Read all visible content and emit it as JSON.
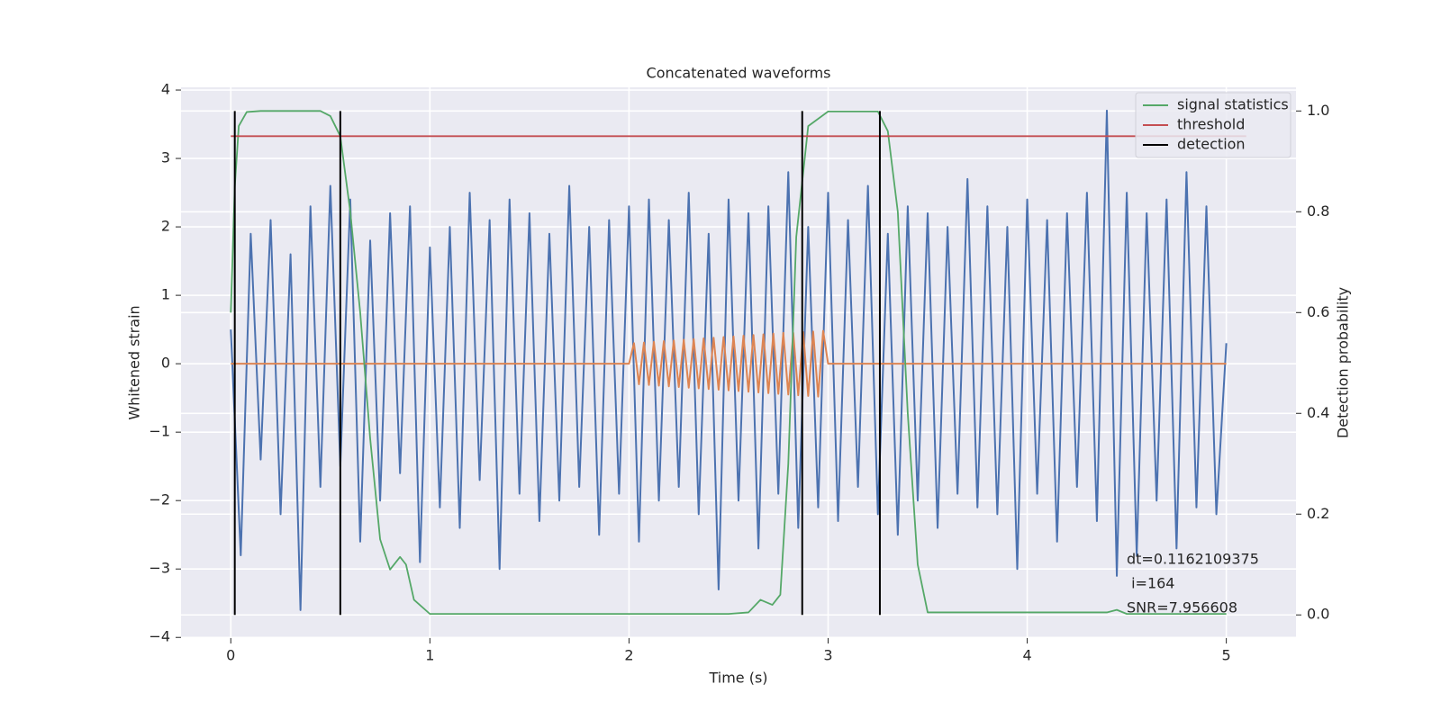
{
  "chart_data": {
    "type": "line",
    "title": "Concatenated waveforms",
    "xlabel": "Time (s)",
    "ylabel": "Whitened strain",
    "y2label": "Detection probability",
    "xlim": [
      -0.25,
      5.35
    ],
    "xticks": [
      0,
      1,
      2,
      3,
      4,
      5
    ],
    "ylim": [
      -4.01,
      4.04
    ],
    "yticks": [
      {
        "value": -4,
        "label": "−4"
      },
      {
        "value": -3,
        "label": "−3"
      },
      {
        "value": -2,
        "label": "−2"
      },
      {
        "value": -1,
        "label": "−1"
      },
      0,
      1,
      2,
      3,
      4
    ],
    "y2lim": [
      -0.046,
      1.047
    ],
    "y2ticks": [
      {
        "value": 0,
        "label": "0.0"
      },
      0.2,
      0.4,
      0.6,
      0.8,
      {
        "value": 1,
        "label": "1.0"
      }
    ],
    "grid": true,
    "legend": "upper right",
    "annotation": [
      "dt=0.1162109375",
      " i=164",
      "SNR=7.956608"
    ],
    "series": [
      {
        "color": "#4c72b0",
        "x": [
          0,
          0.05,
          0.1,
          0.15,
          0.2,
          0.25,
          0.3,
          0.35,
          0.4,
          0.45,
          0.5,
          0.55,
          0.6,
          0.65,
          0.7,
          0.75,
          0.8,
          0.85,
          0.9,
          0.95,
          1,
          1.05,
          1.1,
          1.15,
          1.2,
          1.25,
          1.3,
          1.35,
          1.4,
          1.45,
          1.5,
          1.55,
          1.6,
          1.65,
          1.7,
          1.75,
          1.8,
          1.85,
          1.9,
          1.95,
          2,
          2.05,
          2.1,
          2.15,
          2.2,
          2.25,
          2.3,
          2.35,
          2.4,
          2.45,
          2.5,
          2.55,
          2.6,
          2.65,
          2.7,
          2.75,
          2.8,
          2.85,
          2.9,
          2.95,
          3,
          3.05,
          3.1,
          3.15,
          3.2,
          3.25,
          3.3,
          3.35,
          3.4,
          3.45,
          3.5,
          3.55,
          3.6,
          3.65,
          3.7,
          3.75,
          3.8,
          3.85,
          3.9,
          3.95,
          4,
          4.05,
          4.1,
          4.15,
          4.2,
          4.25,
          4.3,
          4.35,
          4.4,
          4.45,
          4.5,
          4.55,
          4.6,
          4.65,
          4.7,
          4.75,
          4.8,
          4.85,
          4.9,
          4.95,
          5
        ],
        "values": [
          0.5,
          -2.8,
          1.9,
          -1.4,
          2.1,
          -2.2,
          1.6,
          -3.6,
          2.3,
          -1.8,
          2.6,
          -1.5,
          2.4,
          -2.6,
          1.8,
          -2.0,
          2.2,
          -1.6,
          2.3,
          -2.9,
          1.7,
          -2.1,
          2.0,
          -2.4,
          2.5,
          -1.7,
          2.1,
          -3.0,
          2.4,
          -1.9,
          2.2,
          -2.3,
          1.9,
          -2.0,
          2.6,
          -1.8,
          2.0,
          -2.5,
          2.1,
          -1.9,
          2.3,
          -2.6,
          2.4,
          -2.0,
          2.1,
          -1.8,
          2.5,
          -2.2,
          1.9,
          -3.3,
          2.4,
          -2.0,
          2.2,
          -2.7,
          2.3,
          -1.9,
          2.8,
          -2.4,
          2.0,
          -2.1,
          2.5,
          -2.3,
          2.1,
          -1.8,
          2.6,
          -2.2,
          1.9,
          -2.5,
          2.3,
          -2.0,
          2.2,
          -2.4,
          2.0,
          -1.9,
          2.7,
          -2.1,
          2.3,
          -2.2,
          2.0,
          -3.0,
          2.4,
          -1.9,
          2.1,
          -2.6,
          2.2,
          -1.8,
          2.5,
          -2.3,
          3.7,
          -3.1,
          2.5,
          -2.8,
          2.2,
          -2.0,
          2.4,
          -2.7,
          2.8,
          -2.1,
          2.3,
          -2.2,
          0.3
        ]
      },
      {
        "color": "#dd8452",
        "x": [
          0,
          2,
          2.025,
          2.05,
          2.075,
          2.1,
          2.125,
          2.15,
          2.175,
          2.2,
          2.225,
          2.25,
          2.275,
          2.3,
          2.325,
          2.35,
          2.375,
          2.4,
          2.425,
          2.45,
          2.475,
          2.5,
          2.525,
          2.55,
          2.575,
          2.6,
          2.625,
          2.65,
          2.675,
          2.7,
          2.725,
          2.75,
          2.775,
          2.8,
          2.825,
          2.85,
          2.875,
          2.9,
          2.925,
          2.95,
          2.975,
          3,
          5
        ],
        "values": [
          0,
          0,
          0.3,
          -0.3,
          0.31,
          -0.31,
          0.32,
          -0.32,
          0.33,
          -0.33,
          0.34,
          -0.34,
          0.35,
          -0.35,
          0.36,
          -0.36,
          0.37,
          -0.37,
          0.38,
          -0.38,
          0.39,
          -0.39,
          0.4,
          -0.4,
          0.41,
          -0.41,
          0.42,
          -0.42,
          0.43,
          -0.43,
          0.44,
          -0.44,
          0.45,
          -0.45,
          0.45,
          -0.46,
          0.46,
          -0.47,
          0.47,
          -0.48,
          0.48,
          0,
          0
        ]
      },
      {
        "name": "signal statistics",
        "color": "#55a868",
        "axis": "y2",
        "x": [
          0,
          0.02,
          0.04,
          0.08,
          0.15,
          0.45,
          0.5,
          0.55,
          0.6,
          0.65,
          0.7,
          0.75,
          0.8,
          0.85,
          0.88,
          0.92,
          1,
          2.5,
          2.6,
          2.66,
          2.72,
          2.76,
          2.8,
          2.84,
          2.9,
          3,
          3.25,
          3.3,
          3.35,
          3.4,
          3.45,
          3.5,
          4.4,
          4.45,
          4.5,
          5
        ],
        "values": [
          0.6,
          0.85,
          0.97,
          0.998,
          1,
          1,
          0.99,
          0.95,
          0.8,
          0.6,
          0.35,
          0.15,
          0.09,
          0.115,
          0.1,
          0.03,
          0.002,
          0.002,
          0.005,
          0.03,
          0.02,
          0.04,
          0.3,
          0.75,
          0.97,
          0.999,
          0.999,
          0.96,
          0.8,
          0.4,
          0.1,
          0.005,
          0.005,
          0.01,
          0.002,
          0.002
        ]
      },
      {
        "name": "threshold",
        "color": "#c44e52",
        "axis": "y2",
        "x": [
          0,
          5.1
        ],
        "values": [
          0.95,
          0.95
        ]
      },
      {
        "name": "detection",
        "color": "#000000",
        "axis": "y2",
        "style": "vlines",
        "x": [
          0.02,
          0.55,
          2.87,
          3.26
        ],
        "ymin": 0,
        "ymax": 1
      }
    ]
  }
}
